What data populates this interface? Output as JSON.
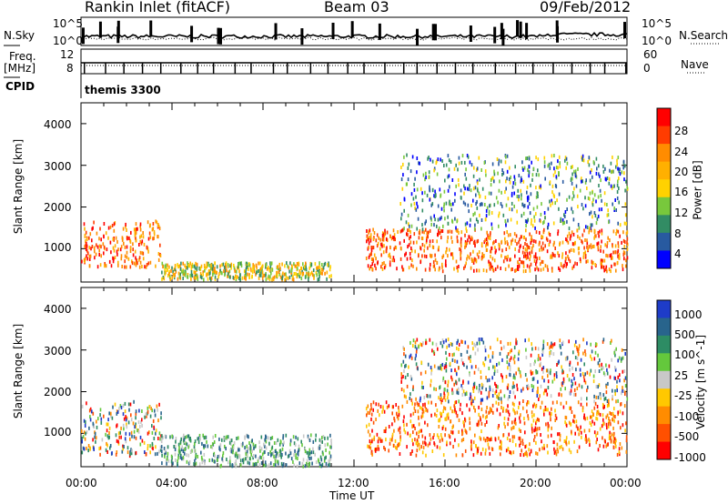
{
  "header": {
    "station": "Rankin Inlet (fitACF)",
    "beam": "Beam 03",
    "date": "09/Feb/2012"
  },
  "top_panels": {
    "nsky_label": "N.Sky",
    "nsky_ticks": [
      "10^5",
      "10^0"
    ],
    "nsearch_label": "N.Search",
    "nsearch_ticks": [
      "10^5",
      "10^0"
    ],
    "freq_label": [
      "Freq.",
      "[MHz]"
    ],
    "freq_ticks": [
      "12",
      "8"
    ],
    "nave_label": "Nave",
    "nave_ticks": [
      "60",
      "0"
    ],
    "cpid_label": "CPID",
    "cpid_value": "themis 3300"
  },
  "chart_data": [
    {
      "type": "heatmap",
      "name": "power",
      "ylabel": "Slant Range [km]",
      "yticks": [
        "1000",
        "2000",
        "3000",
        "4000"
      ],
      "ylim": [
        200,
        4500
      ],
      "colorbar_label": "Power [dB]",
      "colorbar_ticks": [
        "28",
        "24",
        "20",
        "16",
        "12",
        "8",
        "4"
      ],
      "colors": [
        "#ff0000",
        "#ff3c00",
        "#ff8c00",
        "#ffb000",
        "#ffd200",
        "#78c83c",
        "#328c64",
        "#285aa0",
        "#0000ff"
      ],
      "scatter_regions": [
        {
          "t_start": 0.0,
          "t_end": 3.5,
          "range_km": [
            600,
            1700
          ],
          "level": "high"
        },
        {
          "t_start": 3.5,
          "t_end": 11.0,
          "range_km": [
            300,
            700
          ],
          "level": "medium"
        },
        {
          "t_start": 12.5,
          "t_end": 24.0,
          "range_km": [
            500,
            1500
          ],
          "level": "high"
        },
        {
          "t_start": 14.0,
          "t_end": 24.0,
          "range_km": [
            1500,
            3300
          ],
          "level": "low"
        }
      ]
    },
    {
      "type": "heatmap",
      "name": "velocity",
      "ylabel": "Slant Range [km]",
      "yticks": [
        "1000",
        "2000",
        "3000",
        "4000"
      ],
      "ylim": [
        200,
        4500
      ],
      "colorbar_label": "Velocity [m s^-1]",
      "colorbar_ticks": [
        "1000",
        "500",
        "100",
        "25",
        "-25",
        "-100",
        "-500",
        "-1000"
      ],
      "colors": [
        "#1e3cc8",
        "#28648c",
        "#2d8c64",
        "#64c83c",
        "#c8c8c8",
        "#ffc800",
        "#ff8c00",
        "#ff5000",
        "#ff0000"
      ],
      "scatter_regions": [
        {
          "t_start": 0.0,
          "t_end": 3.5,
          "range_km": [
            500,
            1800
          ],
          "level": "mixed"
        },
        {
          "t_start": 3.5,
          "t_end": 11.0,
          "range_km": [
            250,
            1000
          ],
          "level": "positive"
        },
        {
          "t_start": 12.5,
          "t_end": 24.0,
          "range_km": [
            500,
            1800
          ],
          "level": "negative"
        },
        {
          "t_start": 14.0,
          "t_end": 24.0,
          "range_km": [
            1800,
            3300
          ],
          "level": "mixed"
        }
      ]
    }
  ],
  "x_axis": {
    "ticks": [
      "00:00",
      "04:00",
      "08:00",
      "12:00",
      "16:00",
      "20:00",
      "00:00"
    ],
    "label": "Time UT"
  }
}
